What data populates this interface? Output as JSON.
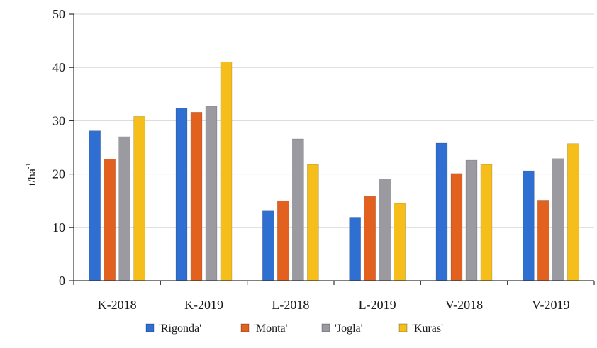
{
  "chart_data": {
    "type": "bar",
    "categories": [
      "K-2018",
      "K-2019",
      "L-2018",
      "L-2019",
      "V-2018",
      "V-2019"
    ],
    "series": [
      {
        "name": "'Rigonda'",
        "values": [
          28.1,
          32.4,
          13.2,
          11.9,
          25.8,
          20.6
        ],
        "color": "#2f6fd1"
      },
      {
        "name": "'Monta'",
        "values": [
          22.8,
          31.6,
          15.0,
          15.8,
          20.1,
          15.1
        ],
        "color": "#e2611f"
      },
      {
        "name": "'Jogla'",
        "values": [
          27.0,
          32.7,
          26.6,
          19.1,
          22.6,
          22.9
        ],
        "color": "#9a9aa0"
      },
      {
        "name": "'Kuras'",
        "values": [
          30.8,
          41.0,
          21.8,
          14.5,
          21.8,
          25.7
        ],
        "color": "#f5be1b"
      }
    ],
    "ylabel": "t/ha",
    "ylabel_superscript": "-1",
    "ylim": [
      0,
      50
    ],
    "yticks": [
      0,
      10,
      20,
      30,
      40,
      50
    ],
    "grid": true,
    "legend_position": "bottom"
  }
}
